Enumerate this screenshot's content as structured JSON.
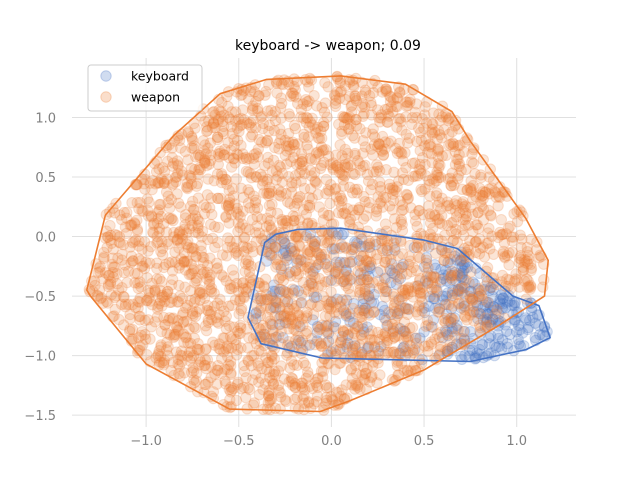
{
  "chart_data": {
    "type": "scatter",
    "title": "keyboard -> weapon; 0.09",
    "xlabel": "",
    "ylabel": "",
    "xlim": [
      -1.4,
      1.32
    ],
    "ylim": [
      -1.6,
      1.5
    ],
    "x_ticks": [
      -1.0,
      -0.5,
      0.0,
      0.5,
      1.0
    ],
    "x_tick_labels": [
      "−1.0",
      "−0.5",
      "0.0",
      "0.5",
      "1.0"
    ],
    "y_ticks": [
      -1.5,
      -1.0,
      -0.5,
      0.0,
      0.5,
      1.0
    ],
    "y_tick_labels": [
      "−1.5",
      "−1.0",
      "−0.5",
      "0.0",
      "0.5",
      "1.0"
    ],
    "grid": true,
    "legend_position": "top-left",
    "series": [
      {
        "name": "keyboard",
        "color": "#4472c4",
        "marker_alpha": 0.2,
        "hull": [
          [
            -0.45,
            -0.68
          ],
          [
            -0.38,
            -0.9
          ],
          [
            -0.05,
            -1.02
          ],
          [
            0.75,
            -1.05
          ],
          [
            1.05,
            -0.95
          ],
          [
            1.18,
            -0.85
          ],
          [
            1.12,
            -0.58
          ],
          [
            0.98,
            -0.5
          ],
          [
            0.68,
            -0.1
          ],
          [
            0.5,
            -0.03
          ],
          [
            0.05,
            0.07
          ],
          [
            -0.18,
            0.06
          ],
          [
            -0.3,
            0.02
          ],
          [
            -0.36,
            -0.05
          ]
        ],
        "points": [
          [
            0.85,
            -0.85
          ],
          [
            0.9,
            -0.75
          ],
          [
            0.95,
            -0.9
          ],
          [
            1.0,
            -0.8
          ],
          [
            1.05,
            -0.7
          ],
          [
            1.1,
            -0.85
          ],
          [
            0.8,
            -0.95
          ],
          [
            0.75,
            -0.8
          ],
          [
            0.7,
            -0.9
          ],
          [
            0.88,
            -1.0
          ],
          [
            1.08,
            -0.62
          ],
          [
            0.92,
            -0.6
          ],
          [
            1.02,
            -0.92
          ],
          [
            0.98,
            -0.65
          ],
          [
            0.82,
            -0.7
          ],
          [
            1.12,
            -0.75
          ],
          [
            0.65,
            -0.95
          ],
          [
            0.6,
            -0.85
          ],
          [
            0.55,
            -0.7
          ],
          [
            0.5,
            -0.8
          ],
          [
            0.45,
            -0.95
          ],
          [
            0.4,
            -0.6
          ],
          [
            0.3,
            -0.75
          ],
          [
            0.2,
            -0.5
          ],
          [
            0.1,
            -0.65
          ],
          [
            0.0,
            -0.55
          ],
          [
            -0.1,
            -0.7
          ],
          [
            -0.2,
            -0.45
          ],
          [
            -0.3,
            -0.6
          ],
          [
            0.35,
            -0.4
          ],
          [
            0.25,
            -0.3
          ],
          [
            0.15,
            -0.2
          ],
          [
            0.6,
            -0.5
          ],
          [
            0.7,
            -0.6
          ],
          [
            0.78,
            -0.55
          ],
          [
            0.95,
            -0.55
          ],
          [
            1.06,
            -0.78
          ],
          [
            0.72,
            -1.0
          ],
          [
            0.58,
            -1.0
          ],
          [
            0.5,
            -0.6
          ]
        ]
      },
      {
        "name": "weapon",
        "color": "#ed7d31",
        "marker_alpha": 0.2,
        "hull": [
          [
            -0.06,
            -1.47
          ],
          [
            0.1,
            -1.38
          ],
          [
            0.5,
            -1.12
          ],
          [
            0.9,
            -0.75
          ],
          [
            1.15,
            -0.5
          ],
          [
            1.17,
            -0.2
          ],
          [
            1.05,
            0.15
          ],
          [
            0.75,
            0.8
          ],
          [
            0.65,
            1.05
          ],
          [
            0.4,
            1.28
          ],
          [
            0.05,
            1.35
          ],
          [
            -0.35,
            1.32
          ],
          [
            -0.6,
            1.2
          ],
          [
            -0.85,
            0.85
          ],
          [
            -1.22,
            0.18
          ],
          [
            -1.32,
            -0.45
          ],
          [
            -1.3,
            -0.5
          ],
          [
            -1.0,
            -1.07
          ],
          [
            -0.55,
            -1.45
          ]
        ]
      }
    ]
  }
}
